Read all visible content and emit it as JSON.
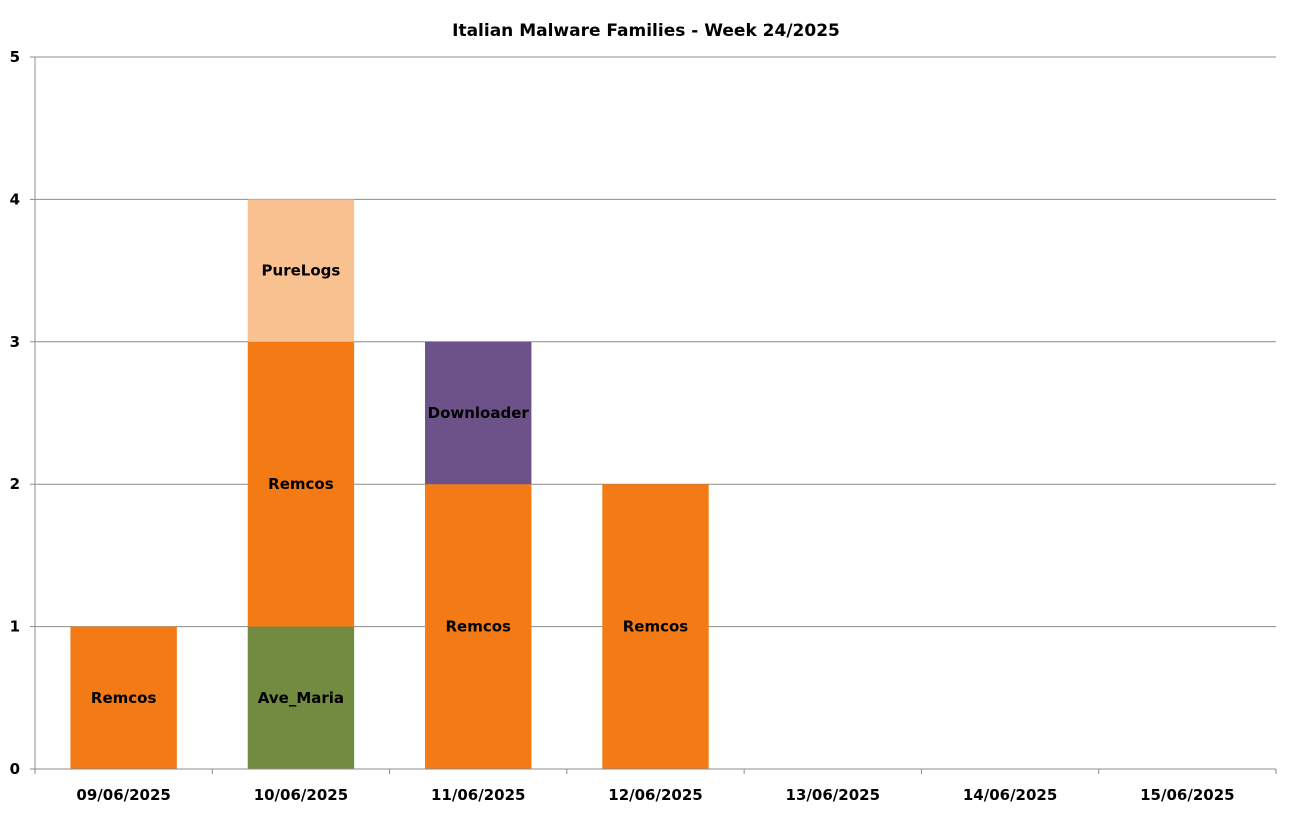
{
  "chart_data": {
    "type": "bar",
    "stacked": true,
    "title": "Italian Malware Families - Week 24/2025",
    "xlabel": "",
    "ylabel": "",
    "ylim": [
      0,
      5
    ],
    "yticks": [
      "0",
      "1",
      "2",
      "3",
      "4",
      "5"
    ],
    "grid": true,
    "legend": "none",
    "categories": [
      "09/06/2025",
      "10/06/2025",
      "11/06/2025",
      "12/06/2025",
      "13/06/2025",
      "14/06/2025",
      "15/06/2025"
    ],
    "stacks": [
      [
        {
          "label": "Remcos",
          "value": 1,
          "color": "#f37a14"
        }
      ],
      [
        {
          "label": "Ave_Maria",
          "value": 1,
          "color": "#728b40"
        },
        {
          "label": "Remcos",
          "value": 2,
          "color": "#f37a14"
        },
        {
          "label": "PureLogs",
          "value": 1,
          "color": "#f9c090"
        }
      ],
      [
        {
          "label": "Remcos",
          "value": 2,
          "color": "#f37a14"
        },
        {
          "label": "Downloader",
          "value": 1,
          "color": "#6c5289"
        }
      ],
      [
        {
          "label": "Remcos",
          "value": 2,
          "color": "#f37a14"
        }
      ],
      [],
      [],
      []
    ]
  }
}
